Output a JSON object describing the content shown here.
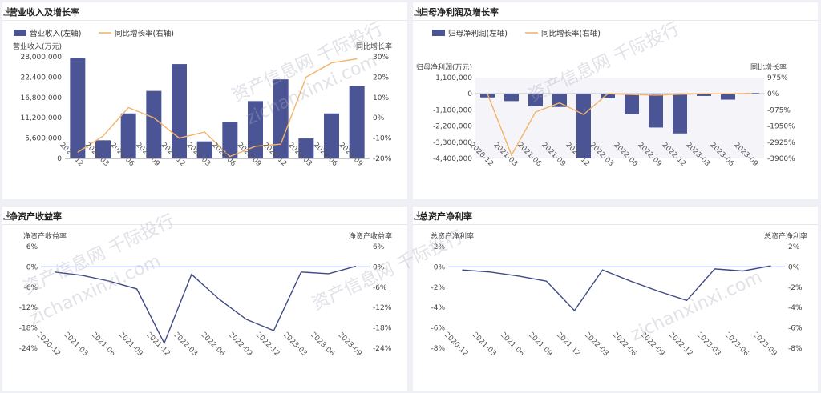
{
  "panels": [
    {
      "title": "营业收入及增长率"
    },
    {
      "title": "归母净利润及增长率"
    },
    {
      "title": "净资产收益率"
    },
    {
      "title": "总资产净利率"
    }
  ],
  "watermark": {
    "line1": "资产信息网 千际投行",
    "line2": "zichanxinxi.com"
  },
  "colors": {
    "bar": "#4b5596",
    "growth_line": "#f4b46a",
    "rate_line": "#3f4a85",
    "zero_line": "#4b5596"
  },
  "chart_data": [
    {
      "type": "bar",
      "categories": [
        "2020-12",
        "2021-03",
        "2021-06",
        "2021-09",
        "2021-12",
        "2022-03",
        "2022-06",
        "2022-09",
        "2022-12",
        "2023-03",
        "2023-06",
        "2023-09"
      ],
      "series": [
        {
          "name": "营业收入(左轴)",
          "axis": "left",
          "type": "bar",
          "values": [
            27700000,
            5000000,
            12400000,
            18600000,
            26000000,
            4700000,
            10100000,
            15800000,
            21800000,
            5500000,
            12400000,
            19900000
          ]
        },
        {
          "name": "同比增长率(右轴)",
          "axis": "right",
          "type": "line",
          "values": [
            -17,
            -9,
            5,
            0,
            -10,
            -7,
            -19,
            -14,
            -13,
            20,
            27,
            29
          ]
        }
      ],
      "ylabel_left": "营业收入(万元)",
      "ylabel_right": "同比增长率",
      "yticks_left": [
        "28,000,000",
        "22,400,000",
        "16,800,000",
        "11,200,000",
        "5,600,000",
        "0"
      ],
      "yticks_right": [
        "30%",
        "20%",
        "10%",
        "0%",
        "-10%",
        "-20%"
      ],
      "ylim_left": [
        0,
        28000000
      ],
      "ylim_right": [
        -20,
        30
      ],
      "legend_position": "top-left"
    },
    {
      "type": "bar",
      "categories": [
        "2020-12",
        "2021-03",
        "2021-06",
        "2021-09",
        "2021-12",
        "2022-03",
        "2022-06",
        "2022-09",
        "2022-12",
        "2023-03",
        "2023-06",
        "2023-09"
      ],
      "series": [
        {
          "name": "归母净利润(左轴)",
          "axis": "left",
          "type": "bar",
          "values": [
            -250000,
            -500000,
            -850000,
            -900000,
            -4400000,
            -300000,
            -1400000,
            -2300000,
            -2700000,
            -150000,
            -400000,
            50000
          ]
        },
        {
          "name": "同比增长率(右轴)",
          "axis": "right",
          "type": "line",
          "values": [
            0,
            -3700,
            -1100,
            -550,
            -1250,
            0,
            -50,
            -80,
            -30,
            0,
            0,
            20
          ]
        }
      ],
      "ylabel_left": "归母净利润(万元)",
      "ylabel_right": "同比增长率",
      "yticks_left": [
        "1,100,000",
        "0",
        "-1,100,000",
        "-2,200,000",
        "-3,300,000",
        "-4,400,000"
      ],
      "yticks_right": [
        "975%",
        "0%",
        "-975%",
        "-1950%",
        "-2925%",
        "-3900%"
      ],
      "ylim_left": [
        -4400000,
        1100000
      ],
      "ylim_right": [
        -3900,
        975
      ],
      "legend_position": "top-left"
    },
    {
      "type": "line",
      "categories": [
        "2020-12",
        "2021-03",
        "2021-06",
        "2021-09",
        "2021-12",
        "2022-03",
        "2022-06",
        "2022-09",
        "2022-12",
        "2023-03",
        "2023-06",
        "2023-09"
      ],
      "series": [
        {
          "values": [
            -1.5,
            -2.5,
            -4.2,
            -6.5,
            -22.5,
            -2.2,
            -9.5,
            -15.5,
            -18.8,
            -1.5,
            -2.0,
            0.2
          ]
        }
      ],
      "ylabel_left": "净资产收益率",
      "ylabel_right": "净资产收益率",
      "yticks": [
        "6%",
        "0%",
        "-6%",
        "-12%",
        "-18%",
        "-24%"
      ],
      "ylim": [
        -24,
        6
      ]
    },
    {
      "type": "line",
      "categories": [
        "2020-12",
        "2021-03",
        "2021-06",
        "2021-09",
        "2021-12",
        "2022-03",
        "2022-06",
        "2022-09",
        "2022-12",
        "2023-03",
        "2023-06",
        "2023-09"
      ],
      "series": [
        {
          "values": [
            -0.3,
            -0.5,
            -0.9,
            -1.4,
            -4.3,
            -0.3,
            -1.4,
            -2.4,
            -3.3,
            -0.2,
            -0.4,
            0.1
          ]
        }
      ],
      "ylabel_left": "总资产净利率",
      "ylabel_right": "总资产净利率",
      "yticks": [
        "2%",
        "0%",
        "-2%",
        "-4%",
        "-6%",
        "-8%"
      ],
      "ylim": [
        -8,
        2
      ]
    }
  ]
}
